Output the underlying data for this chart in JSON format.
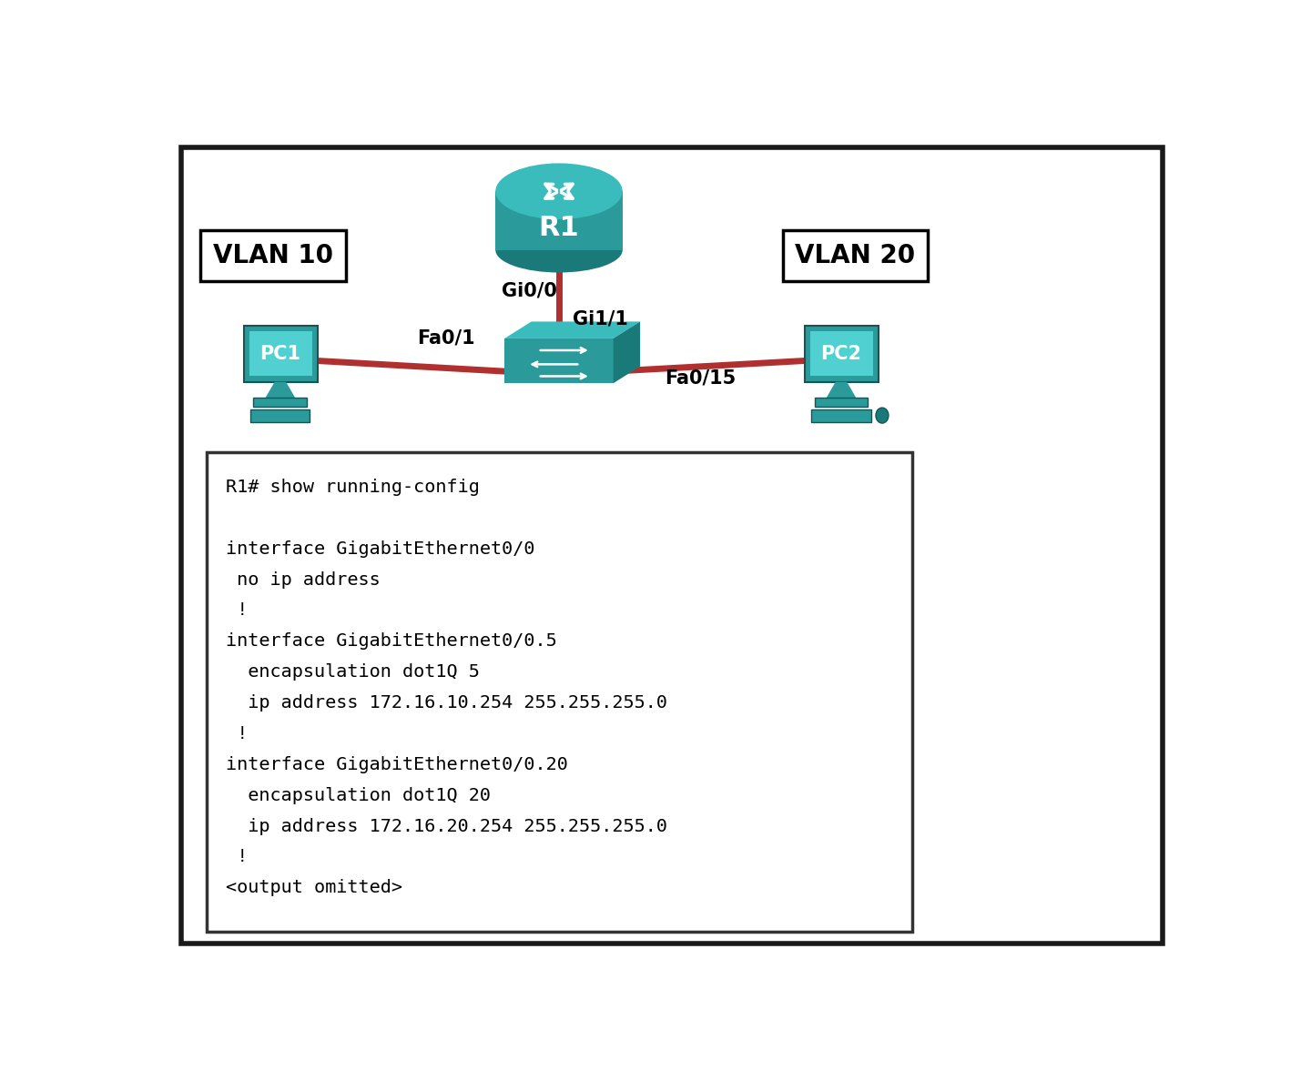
{
  "bg_color": "#ffffff",
  "outer_border_color": "#1a1a1a",
  "vlan10_label": "VLAN 10",
  "vlan20_label": "VLAN 20",
  "r1_label": "R1",
  "pc1_label": "PC1",
  "pc2_label": "PC2",
  "gi00_label": "Gi0/0",
  "gi11_label": "Gi1/1",
  "fa01_label": "Fa0/1",
  "fa015_label": "Fa0/15",
  "line_color": "#b03030",
  "teal_dark": "#1a7a7a",
  "teal_mid": "#2a9a9a",
  "teal_light": "#3abcbc",
  "teal_lighter": "#50d0d0",
  "console_lines": [
    "R1# show running-config",
    "",
    "interface GigabitEthernet0/0",
    " no ip address",
    " !",
    "interface GigabitEthernet0/0.5",
    "  encapsulation dot1Q 5",
    "  ip address 172.16.10.254 255.255.255.0",
    " !",
    "interface GigabitEthernet0/0.20",
    "  encapsulation dot1Q 20",
    "  ip address 172.16.20.254 255.255.255.0",
    " !",
    "<output omitted>"
  ],
  "console_bg": "#ffffff",
  "console_border": "#333333",
  "console_font_color": "#000000",
  "console_font_size": 14.5,
  "vlan_font_size": 20,
  "label_font_size": 15
}
